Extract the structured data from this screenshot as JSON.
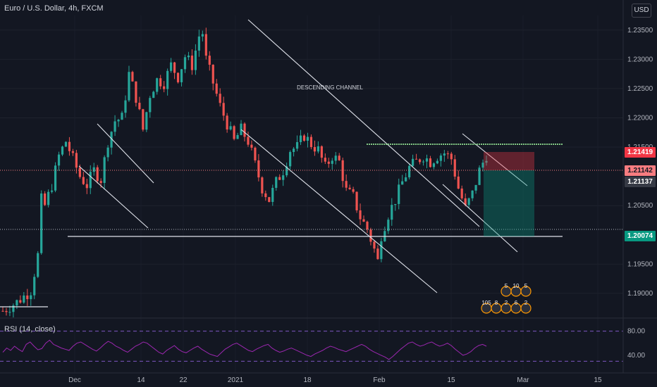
{
  "header": {
    "title": "Euro / U.S. Dollar, 4h, FXCM",
    "currency": "USD"
  },
  "rsi": {
    "title": "RSI (14, close)"
  },
  "annotations": {
    "channel_label": "DESCENDING CHANNEL"
  },
  "price_tags": [
    {
      "id": "stop",
      "label": "1.21419",
      "bg": "#f23645",
      "fg": "#ffffff"
    },
    {
      "id": "current-a",
      "label": "1.21142",
      "bg": "#f77c80",
      "fg": "#131722"
    },
    {
      "id": "current-b",
      "label": "1.21137",
      "bg": "#363a45",
      "fg": "#ffffff"
    },
    {
      "id": "target",
      "label": "1.20074",
      "bg": "#089981",
      "fg": "#ffffff"
    }
  ],
  "event_badges": {
    "top": [
      "5",
      "10",
      "5"
    ],
    "bottom": [
      "105",
      "8",
      "2",
      "6",
      "2"
    ]
  },
  "colors": {
    "up": "#26a69a",
    "down": "#ef5350",
    "rsi": "#9c27b0",
    "background": "#131722",
    "resistance": "#81c784"
  },
  "chart_data": [
    {
      "type": "candlestick",
      "y_ticks": [
        "1.23500",
        "1.23000",
        "1.22500",
        "1.22000",
        "1.21500",
        "1.20500",
        "1.19500",
        "1.19000"
      ],
      "x_ticks": [
        "Dec",
        "14",
        "22",
        "2021",
        "18",
        "Feb",
        "15",
        "Mar",
        "15"
      ],
      "ylim": [
        1.1865,
        1.2375
      ],
      "series": [
        {
          "values": [
            [
              0,
              1.187
            ],
            [
              4,
              1.1885
            ],
            [
              8,
              1.1905
            ],
            [
              10,
              1.1965
            ],
            [
              11,
              1.206
            ],
            [
              12,
              1.205
            ],
            [
              14,
              1.2085
            ],
            [
              16,
              1.2135
            ],
            [
              18,
              1.216
            ],
            [
              20,
              1.213
            ],
            [
              22,
              1.21
            ],
            [
              24,
              1.2085
            ],
            [
              26,
              1.211
            ],
            [
              28,
              1.2095
            ],
            [
              30,
              1.216
            ],
            [
              32,
              1.2195
            ],
            [
              34,
              1.22
            ],
            [
              36,
              1.2275
            ],
            [
              38,
              1.2235
            ],
            [
              40,
              1.218
            ],
            [
              42,
              1.224
            ],
            [
              44,
              1.2265
            ],
            [
              46,
              1.226
            ],
            [
              48,
              1.229
            ],
            [
              50,
              1.227
            ],
            [
              52,
              1.2305
            ],
            [
              54,
              1.229
            ],
            [
              56,
              1.234
            ],
            [
              57,
              1.2345
            ],
            [
              58,
              1.23
            ],
            [
              60,
              1.226
            ],
            [
              62,
              1.222
            ],
            [
              64,
              1.219
            ],
            [
              66,
              1.216
            ],
            [
              68,
              1.218
            ],
            [
              70,
              1.216
            ],
            [
              72,
              1.212
            ],
            [
              74,
              1.208
            ],
            [
              76,
              1.206
            ],
            [
              78,
              1.209
            ],
            [
              80,
              1.211
            ],
            [
              82,
              1.2145
            ],
            [
              84,
              1.215
            ],
            [
              86,
              1.217
            ],
            [
              88,
              1.2155
            ],
            [
              90,
              1.2145
            ],
            [
              92,
              1.2115
            ],
            [
              94,
              1.2135
            ],
            [
              96,
              1.2125
            ],
            [
              98,
              1.2075
            ],
            [
              100,
              1.2065
            ],
            [
              102,
              1.203
            ],
            [
              104,
              1.201
            ],
            [
              106,
              1.1975
            ],
            [
              107,
              1.1955
            ],
            [
              108,
              1.2
            ],
            [
              110,
              1.2035
            ],
            [
              112,
              1.206
            ],
            [
              114,
              1.209
            ],
            [
              116,
              1.2115
            ],
            [
              118,
              1.2125
            ],
            [
              120,
              1.2135
            ],
            [
              122,
              1.2125
            ],
            [
              124,
              1.2135
            ],
            [
              126,
              1.214
            ],
            [
              128,
              1.213
            ],
            [
              130,
              1.208
            ],
            [
              132,
              1.2045
            ],
            [
              134,
              1.207
            ],
            [
              136,
              1.211
            ],
            [
              138,
              1.2137
            ]
          ]
        }
      ]
    },
    {
      "type": "line",
      "title": "RSI (14, close)",
      "y_ticks": [
        "80.00",
        "40.00"
      ],
      "ylim": [
        20,
        90
      ],
      "series": [
        {
          "values": [
            45,
            52,
            48,
            55,
            50,
            46,
            58,
            62,
            55,
            49,
            51,
            60,
            65,
            58,
            55,
            52,
            50,
            48,
            55,
            60,
            62,
            58,
            54,
            50,
            47,
            52,
            58,
            63,
            60,
            55,
            52,
            48,
            45,
            50,
            55,
            58,
            62,
            60,
            55,
            50,
            45,
            42,
            48,
            52,
            56,
            50,
            46,
            44,
            48,
            52,
            55,
            50,
            46,
            42,
            40,
            38,
            44,
            50,
            54,
            58,
            60,
            56,
            52,
            48,
            46,
            50,
            53,
            56,
            58,
            52,
            48,
            45,
            47,
            50,
            52,
            49,
            46,
            43,
            40,
            38,
            42,
            45,
            48,
            52,
            55,
            53,
            50,
            48,
            46,
            49,
            52,
            55,
            58,
            55,
            50,
            46,
            43,
            40,
            37,
            33,
            38,
            44,
            50,
            55,
            60,
            62,
            58,
            55,
            57,
            60,
            62,
            58,
            55,
            57,
            60,
            56,
            50,
            45,
            40,
            42,
            46,
            52,
            56,
            58,
            55
          ]
        }
      ]
    }
  ]
}
